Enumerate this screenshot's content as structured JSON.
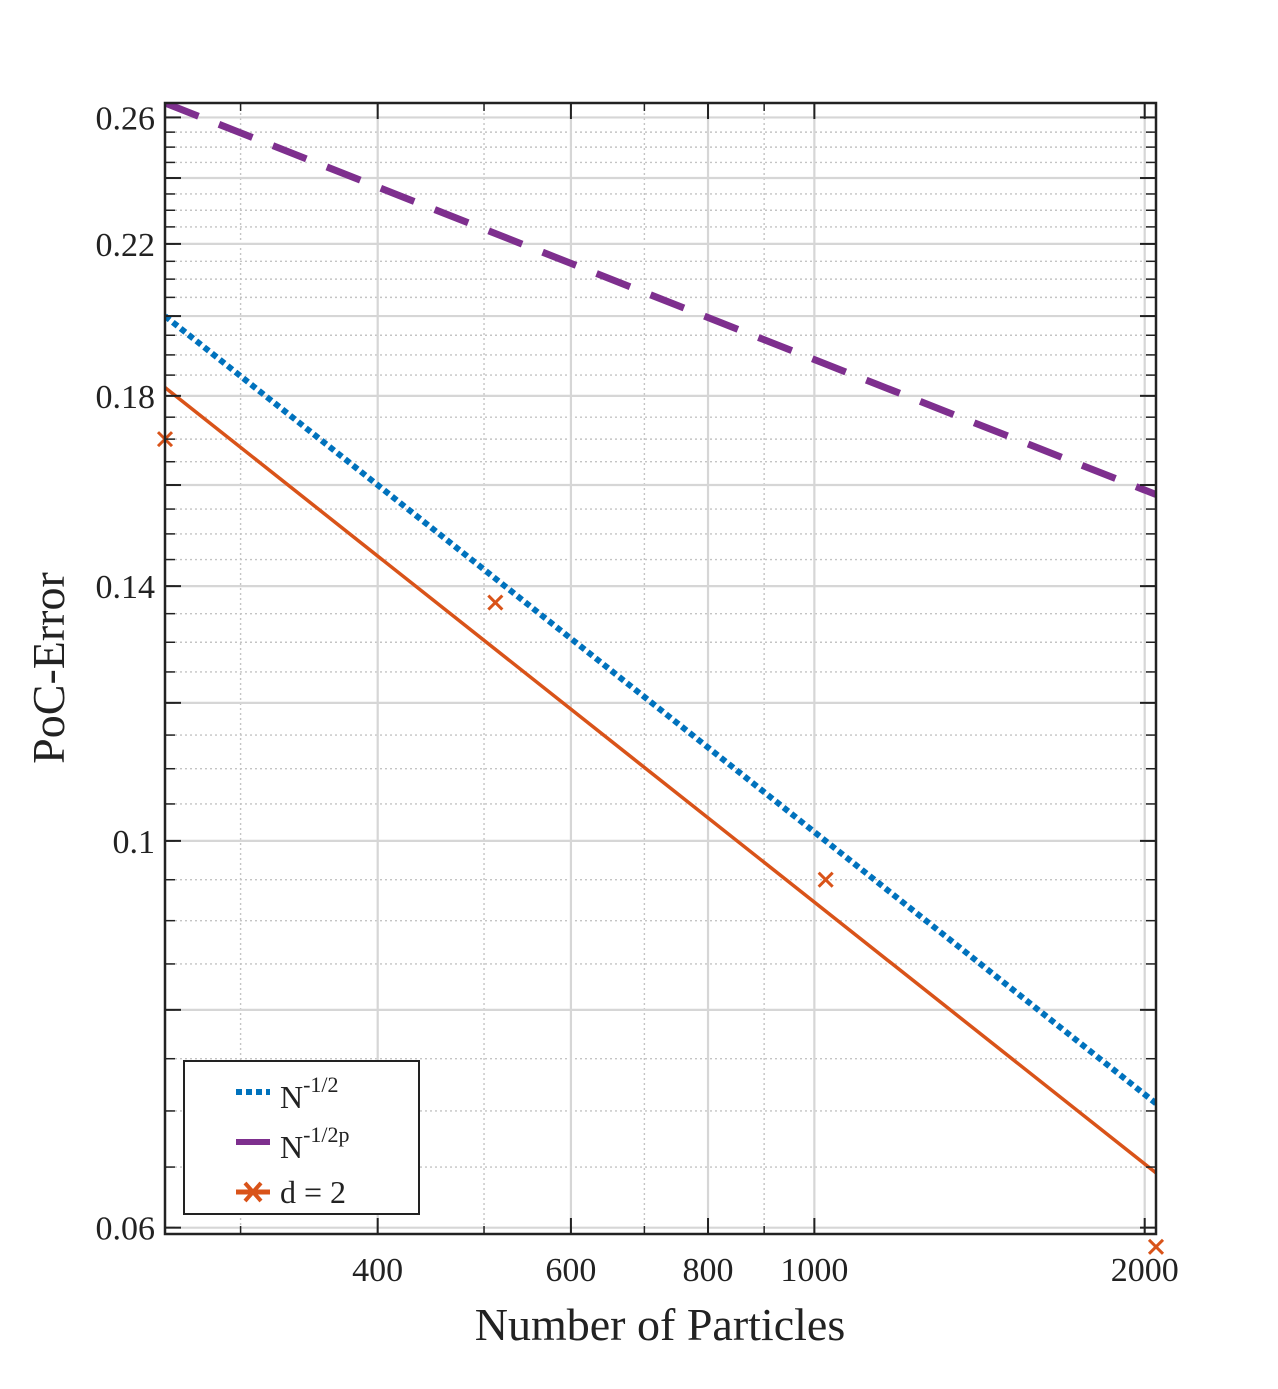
{
  "chart_data": {
    "type": "line",
    "xscale": "log",
    "yscale": "log",
    "xlabel": "Number of Particles",
    "ylabel": "PoC-Error",
    "xlim": [
      256,
      2048
    ],
    "ylim": [
      0.0595,
      0.265
    ],
    "xticks": [
      {
        "value": 400,
        "label": "400"
      },
      {
        "value": 600,
        "label": "600"
      },
      {
        "value": 800,
        "label": "800"
      },
      {
        "value": 1000,
        "label": "1000"
      },
      {
        "value": 2000,
        "label": "2000"
      }
    ],
    "yticks": [
      {
        "value": 0.06,
        "label": "0.06"
      },
      {
        "value": 0.1,
        "label": "0.1"
      },
      {
        "value": 0.14,
        "label": "0.14"
      },
      {
        "value": 0.18,
        "label": "0.18"
      },
      {
        "value": 0.22,
        "label": "0.22"
      },
      {
        "value": 0.26,
        "label": "0.26"
      }
    ],
    "grid": true,
    "legend_position": "bottom-left",
    "series": [
      {
        "name": "N^{-1/2}",
        "legend_base": "N",
        "legend_sup": "-1/2",
        "style": "dotted",
        "color": "#0072BD",
        "x": [
          256,
          2048
        ],
        "y": [
          0.2,
          0.0707
        ]
      },
      {
        "name": "N^{-1/2p}",
        "legend_base": "N",
        "legend_sup": "-1/2p",
        "style": "dashed",
        "color": "#7E2F8E",
        "x": [
          256,
          2048
        ],
        "y": [
          0.265,
          0.158
        ]
      },
      {
        "name": "d = 2",
        "legend_base": "d = 2",
        "legend_sup": "",
        "style": "markers+fit",
        "color": "#D95319",
        "points": {
          "x": [
            256,
            512,
            1024,
            2048
          ],
          "y": [
            0.17,
            0.137,
            0.095,
            0.0585
          ]
        },
        "fit": {
          "x": [
            256,
            2048
          ],
          "y": [
            0.182,
            0.0645
          ]
        }
      }
    ]
  }
}
